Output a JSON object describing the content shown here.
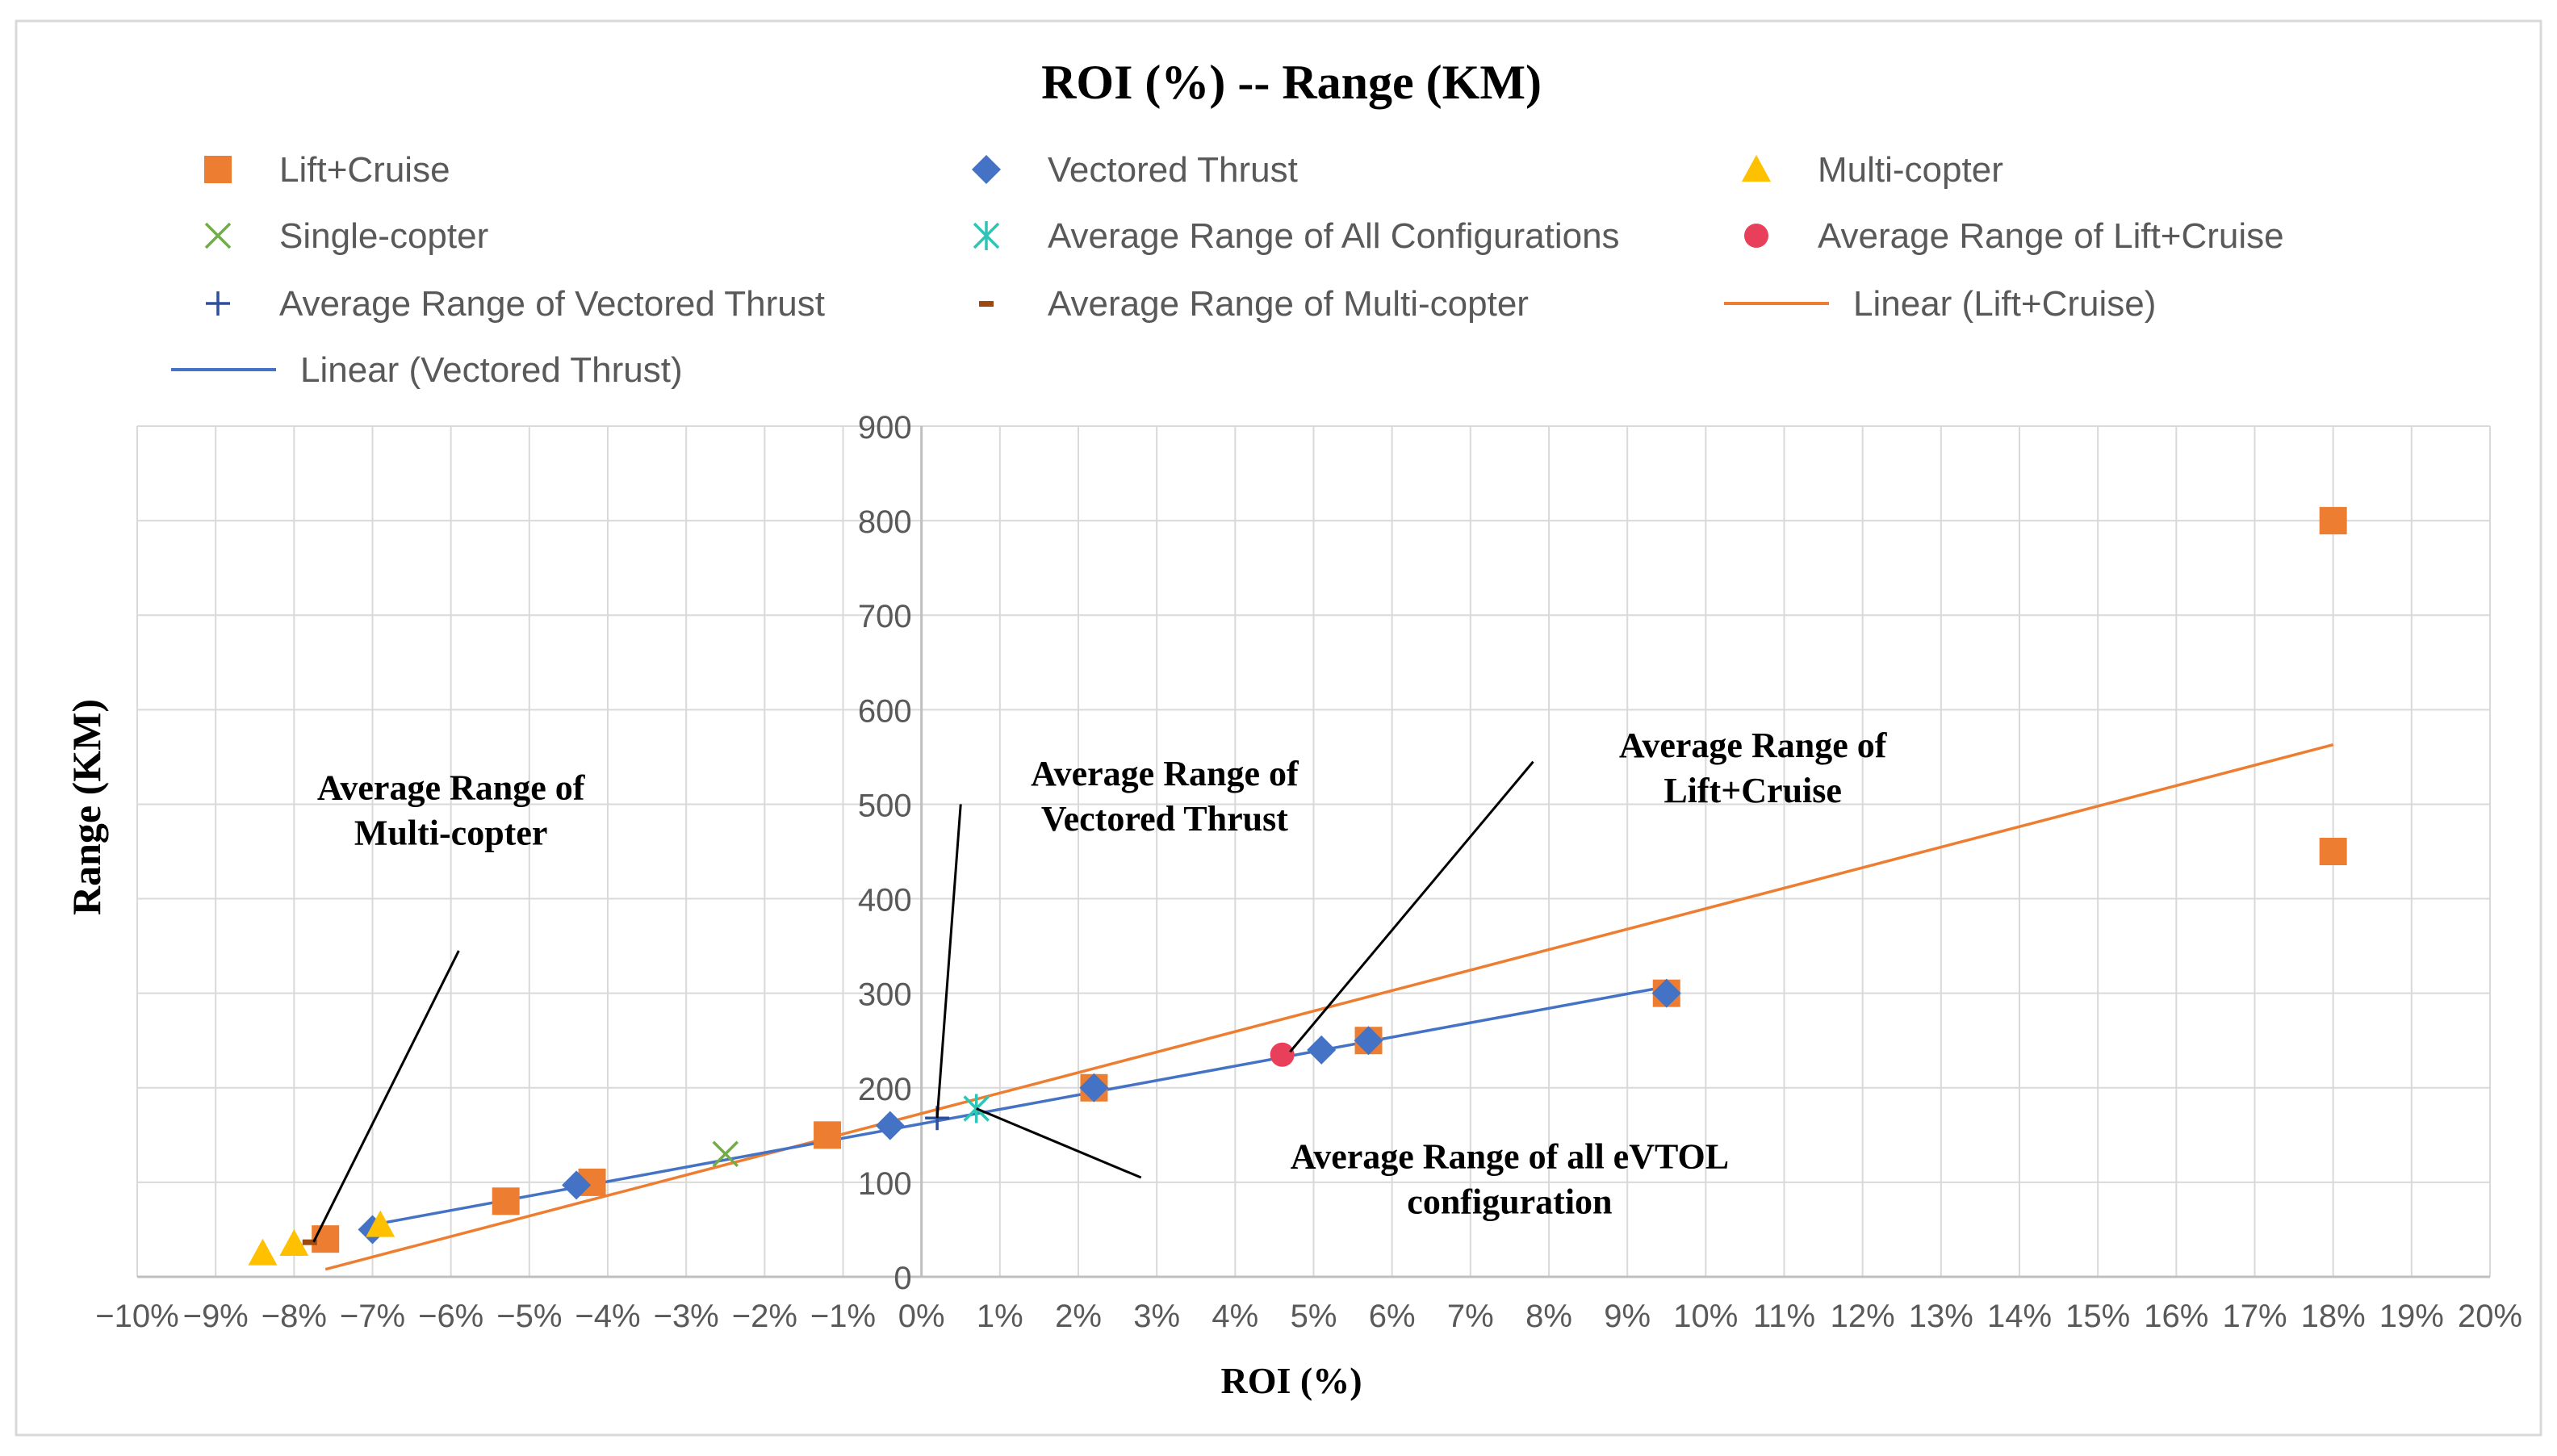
{
  "chart_data": {
    "type": "scatter",
    "title": "ROI (%) -- Range (KM)",
    "xlabel": "ROI (%)",
    "ylabel": "Range (KM)",
    "xlim": [
      -10,
      20
    ],
    "ylim": [
      0,
      900
    ],
    "x_ticks": [
      "−10%",
      "−9%",
      "−8%",
      "−7%",
      "−6%",
      "−5%",
      "−4%",
      "−3%",
      "−2%",
      "−1%",
      "0%",
      "1%",
      "2%",
      "3%",
      "4%",
      "5%",
      "6%",
      "7%",
      "8%",
      "9%",
      "10%",
      "11%",
      "12%",
      "13%",
      "14%",
      "15%",
      "16%",
      "17%",
      "18%",
      "19%",
      "20%"
    ],
    "y_ticks": [
      "0",
      "100",
      "200",
      "300",
      "400",
      "500",
      "600",
      "700",
      "800",
      "900"
    ],
    "grid": true,
    "legend_position": "top",
    "colors": {
      "lift_cruise": "#ED7D31",
      "vectored": "#4472C4",
      "multicopter": "#FFC000",
      "singlecopter": "#70AD47",
      "all_avg": "#2EC4B6",
      "lc_avg": "#E8405A",
      "vt_avg": "#2F4F9C",
      "mc_avg": "#9E480E",
      "grid": "#D9D9D9",
      "axis": "#BFBFBF",
      "text": "#595959",
      "annotation": "#000000"
    },
    "legend": [
      {
        "name": "Lift+Cruise",
        "symbol": "square",
        "color_key": "lift_cruise"
      },
      {
        "name": "Vectored Thrust",
        "symbol": "diamond",
        "color_key": "vectored"
      },
      {
        "name": "Multi-copter",
        "symbol": "triangle",
        "color_key": "multicopter"
      },
      {
        "name": "Single-copter",
        "symbol": "x",
        "color_key": "singlecopter"
      },
      {
        "name": "Average Range of All Configurations",
        "symbol": "asterisk",
        "color_key": "all_avg"
      },
      {
        "name": "Average Range of Lift+Cruise",
        "symbol": "circle",
        "color_key": "lc_avg"
      },
      {
        "name": "Average Range of Vectored Thrust",
        "symbol": "plus",
        "color_key": "vt_avg"
      },
      {
        "name": "Average Range of Multi-copter",
        "symbol": "dash",
        "color_key": "mc_avg"
      },
      {
        "name": "Linear (Lift+Cruise)",
        "symbol": "line",
        "color_key": "lift_cruise"
      },
      {
        "name": "Linear (Vectored Thrust)",
        "symbol": "line",
        "color_key": "vectored"
      }
    ],
    "series": [
      {
        "name": "Lift+Cruise",
        "symbol": "square",
        "color_key": "lift_cruise",
        "points": [
          [
            -7.6,
            40
          ],
          [
            -5.3,
            80
          ],
          [
            -4.2,
            100
          ],
          [
            -1.2,
            150
          ],
          [
            2.2,
            200
          ],
          [
            5.7,
            250
          ],
          [
            9.5,
            300
          ],
          [
            18,
            450
          ],
          [
            18,
            800
          ]
        ]
      },
      {
        "name": "Vectored Thrust",
        "symbol": "diamond",
        "color_key": "vectored",
        "points": [
          [
            -7.0,
            50
          ],
          [
            -4.4,
            97
          ],
          [
            -0.4,
            160
          ],
          [
            2.2,
            200
          ],
          [
            5.1,
            240
          ],
          [
            5.7,
            250
          ],
          [
            9.5,
            300
          ]
        ]
      },
      {
        "name": "Multi-copter",
        "symbol": "triangle",
        "color_key": "multicopter",
        "points": [
          [
            -8.4,
            25
          ],
          [
            -8.0,
            35
          ],
          [
            -6.9,
            55
          ]
        ]
      },
      {
        "name": "Single-copter",
        "symbol": "x",
        "color_key": "singlecopter",
        "points": [
          [
            -2.5,
            130
          ]
        ]
      },
      {
        "name": "Average Range of All Configurations",
        "symbol": "asterisk",
        "color_key": "all_avg",
        "points": [
          [
            0.7,
            178
          ]
        ]
      },
      {
        "name": "Average Range of Lift+Cruise",
        "symbol": "circle",
        "color_key": "lc_avg",
        "points": [
          [
            4.6,
            235
          ]
        ]
      },
      {
        "name": "Average Range of Vectored Thrust",
        "symbol": "plus",
        "color_key": "vt_avg",
        "points": [
          [
            0.2,
            168
          ]
        ]
      },
      {
        "name": "Average Range of Multi-copter",
        "symbol": "dash",
        "color_key": "mc_avg",
        "points": [
          [
            -7.8,
            37
          ]
        ]
      }
    ],
    "trendlines": [
      {
        "name": "Linear (Lift+Cruise)",
        "color_key": "lift_cruise",
        "from": [
          -7.6,
          8
        ],
        "to": [
          18,
          563
        ]
      },
      {
        "name": "Linear (Vectored Thrust)",
        "color_key": "vectored",
        "from": [
          -7.0,
          55
        ],
        "to": [
          9.5,
          307
        ]
      }
    ],
    "annotations": [
      {
        "lines": [
          "Average Range of",
          "Multi-copter"
        ],
        "text_at": [
          -6.0,
          505
        ],
        "leader": [
          [
            -5.9,
            345
          ],
          [
            -7.75,
            37
          ]
        ]
      },
      {
        "lines": [
          "Average Range of",
          "Vectored Thrust"
        ],
        "text_at": [
          3.1,
          520
        ],
        "leader": [
          [
            0.5,
            500
          ],
          [
            0.2,
            168
          ]
        ]
      },
      {
        "lines": [
          "Average Range of",
          "Lift+Cruise"
        ],
        "text_at": [
          10.6,
          550
        ],
        "leader": [
          [
            7.8,
            545
          ],
          [
            4.7,
            238
          ]
        ]
      },
      {
        "lines": [
          "Average Range of all eVTOL",
          "configuration"
        ],
        "text_at": [
          7.5,
          115
        ],
        "leader": [
          [
            2.8,
            105
          ],
          [
            0.7,
            178
          ]
        ]
      }
    ]
  }
}
